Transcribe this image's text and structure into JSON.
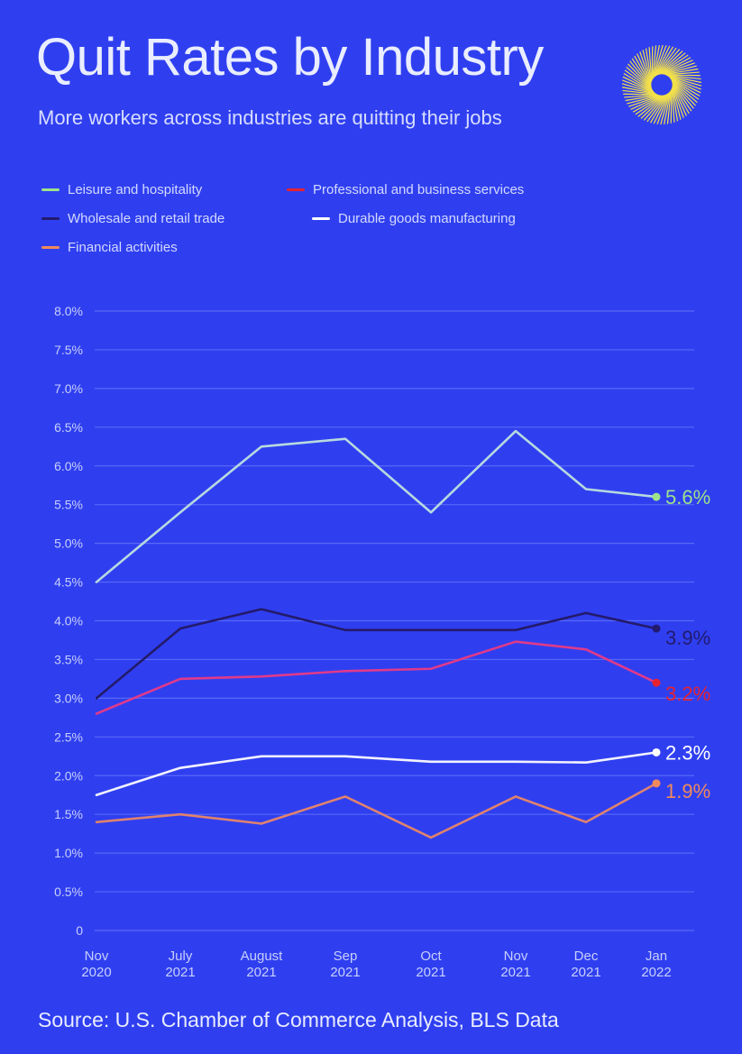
{
  "title": "Quit Rates by Industry",
  "subtitle": "More workers across industries are quitting their jobs",
  "source": "Source: U.S. Chamber of Commerce Analysis, BLS Data",
  "logo_icon": "circular-swirl-logo-icon",
  "colors": {
    "background": "#2f3ff0",
    "grid": "#5a68f5",
    "logo": "#f2e04a"
  },
  "chart_data": {
    "type": "line",
    "title": "Quit Rates by Industry",
    "x": [
      [
        "Nov",
        "2020"
      ],
      [
        "July",
        "2021"
      ],
      [
        "August",
        "2021"
      ],
      [
        "Sep",
        "2021"
      ],
      [
        "Oct",
        "2021"
      ],
      [
        "Nov",
        "2021"
      ],
      [
        "Dec",
        "2021"
      ],
      [
        "Jan",
        "2022"
      ]
    ],
    "ylim": [
      0,
      8
    ],
    "yticks": [
      "0",
      "0.5%",
      "1.0%",
      "1.5%",
      "2.0%",
      "2.5%",
      "3.0%",
      "3.5%",
      "4.0%",
      "4.5%",
      "5.0%",
      "5.5%",
      "6.0%",
      "6.5%",
      "7.0%",
      "7.5%",
      "8.0%"
    ],
    "grid": true,
    "legend_position": "top-left",
    "series": [
      {
        "name": "Leisure and hospitality",
        "color": "#9ee28a",
        "line_color": "#b7d9df",
        "values": [
          4.5,
          5.4,
          6.25,
          6.35,
          5.4,
          6.45,
          5.7,
          5.6
        ],
        "end_label": "5.6%"
      },
      {
        "name": "Professional and business services",
        "color": "#e8222f",
        "line_color": "#e03a8a",
        "values": [
          2.8,
          3.25,
          3.28,
          3.35,
          3.38,
          3.73,
          3.63,
          3.2
        ],
        "end_label": "3.2%"
      },
      {
        "name": "Wholesale and retail trade",
        "color": "#221a6e",
        "line_color": "#231a6a",
        "values": [
          3.0,
          3.9,
          4.15,
          3.88,
          3.88,
          3.88,
          4.1,
          3.9
        ],
        "end_label": "3.9%"
      },
      {
        "name": "Durable goods manufacturing",
        "color": "#ffffff",
        "line_color": "#f2f2ff",
        "values": [
          1.75,
          2.1,
          2.25,
          2.25,
          2.18,
          2.18,
          2.17,
          2.3
        ],
        "end_label": "2.3%"
      },
      {
        "name": "Financial activities",
        "color": "#f08a5c",
        "line_color": "#e0826e",
        "values": [
          1.4,
          1.5,
          1.38,
          1.73,
          1.2,
          1.73,
          1.4,
          1.9
        ],
        "end_label": "1.9%"
      }
    ]
  }
}
